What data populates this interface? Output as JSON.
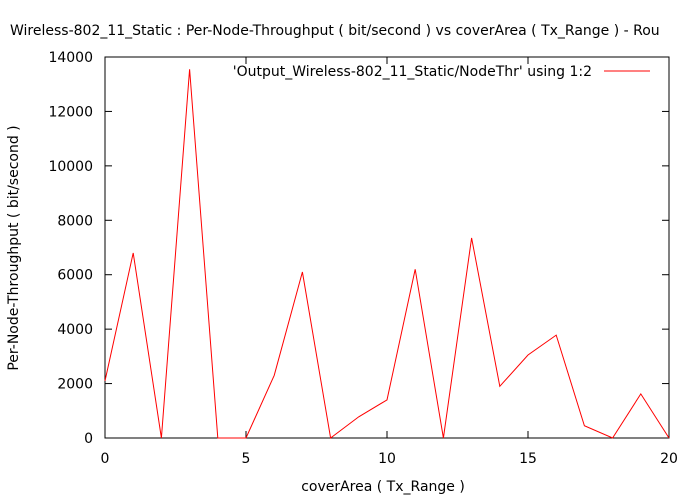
{
  "chart_data": {
    "type": "line",
    "title": "Wireless-802_11_Static : Per-Node-Throughput ( bit/second ) vs coverArea ( Tx_Range ) - Rou",
    "xlabel": "coverArea ( Tx_Range )",
    "ylabel": "Per-Node-Throughput ( bit/second )",
    "xlim": [
      0,
      20
    ],
    "ylim": [
      0,
      14000
    ],
    "xticks": [
      0,
      5,
      10,
      15,
      20
    ],
    "yticks": [
      0,
      2000,
      4000,
      6000,
      8000,
      10000,
      12000,
      14000
    ],
    "grid": false,
    "legend_position": "top-right",
    "series": [
      {
        "name": "'Output_Wireless-802_11_Static/NodeThr' using 1:2",
        "color": "#ff0000",
        "x": [
          0,
          1,
          2,
          3,
          4,
          5,
          6,
          7,
          8,
          9,
          10,
          11,
          12,
          13,
          14,
          15,
          16,
          17,
          18,
          19,
          20
        ],
        "y": [
          2100,
          6800,
          0,
          13550,
          0,
          0,
          2300,
          6100,
          0,
          780,
          1400,
          6200,
          0,
          7350,
          1900,
          3050,
          3780,
          450,
          0,
          1620,
          0
        ]
      }
    ]
  }
}
